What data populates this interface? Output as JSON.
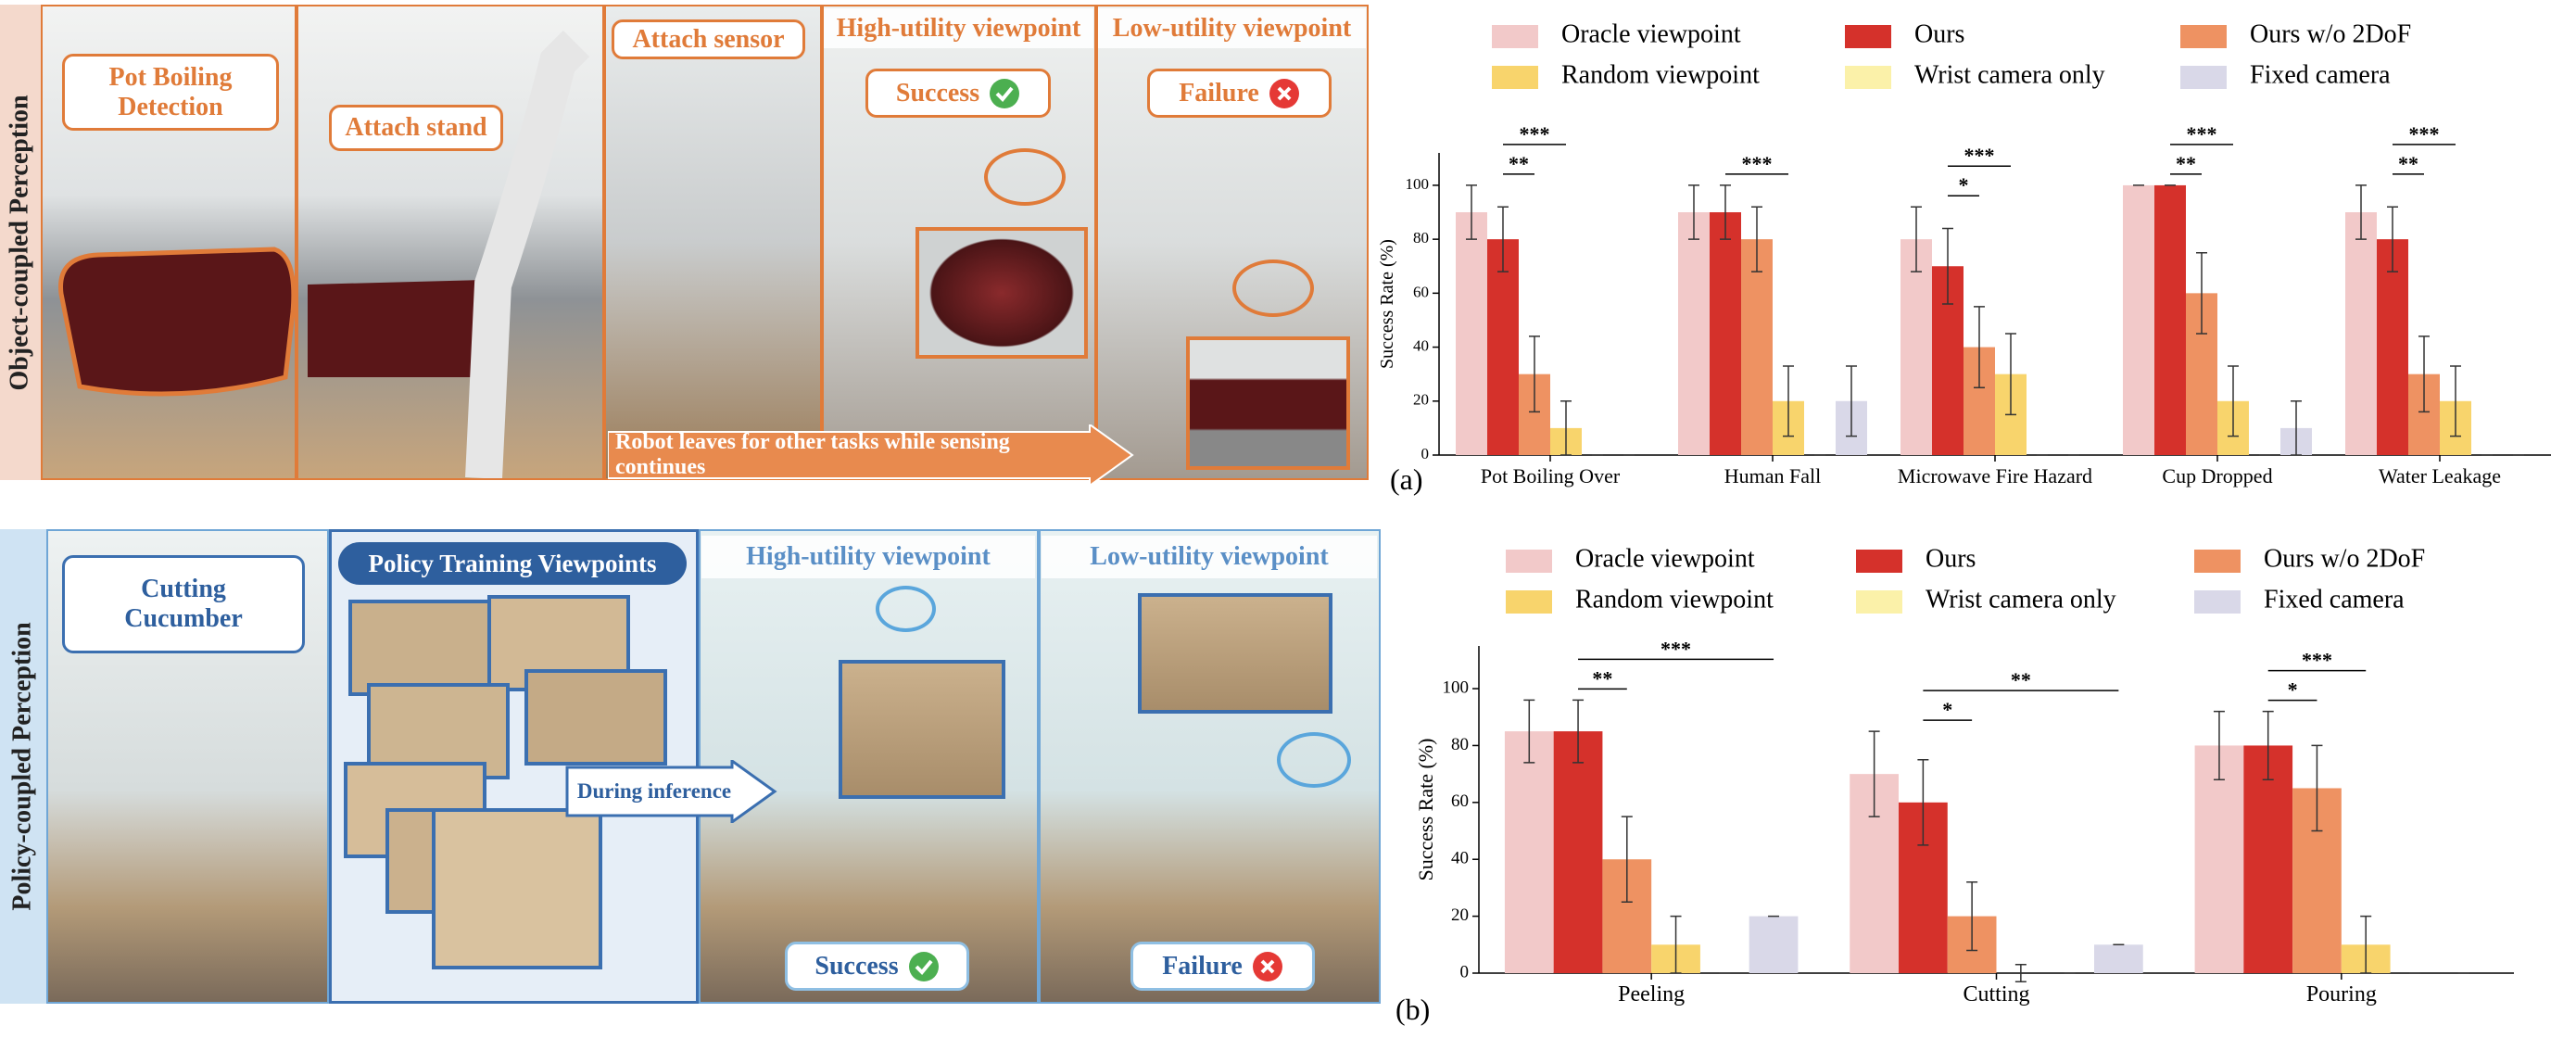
{
  "figure": {
    "top": {
      "side_label": "Object-coupled Perception",
      "task": "Pot Boiling Detection",
      "step1": "Attach stand",
      "step2": "Attach sensor",
      "high": "High-utility viewpoint",
      "low": "Low-utility viewpoint",
      "success": "Success",
      "failure": "Failure",
      "banner": "Robot leaves for other tasks while sensing continues",
      "caption": "(a)"
    },
    "bottom": {
      "side_label": "Policy-coupled Perception",
      "task": "Cutting Cucumber",
      "training": "Policy Training Viewpoints",
      "inference": "During inference",
      "high": "High-utility viewpoint",
      "low": "Low-utility viewpoint",
      "success": "Success",
      "failure": "Failure",
      "caption": "(b)"
    }
  },
  "chart_data": [
    {
      "type": "bar",
      "y_label": "Success Rate (%)",
      "categories": [
        "Pot Boiling Over",
        "Human Fall",
        "Microwave Fire Hazard",
        "Cup Dropped",
        "Water Leakage"
      ],
      "series": [
        {
          "name": "Oracle viewpoint",
          "color": "#f2c9c9",
          "values": [
            90,
            90,
            80,
            100,
            90
          ],
          "errors": [
            10,
            10,
            12,
            0,
            10
          ]
        },
        {
          "name": "Ours",
          "color": "#d5312b",
          "values": [
            80,
            90,
            70,
            100,
            80
          ],
          "errors": [
            12,
            10,
            14,
            0,
            12
          ]
        },
        {
          "name": "Ours w/o 2DoF",
          "color": "#ee9262",
          "values": [
            30,
            80,
            40,
            60,
            30
          ],
          "errors": [
            14,
            12,
            15,
            15,
            14
          ]
        },
        {
          "name": "Random viewpoint",
          "color": "#f8d46c",
          "values": [
            10,
            20,
            30,
            20,
            20
          ],
          "errors": [
            10,
            13,
            15,
            13,
            13
          ]
        },
        {
          "name": "Wrist camera only",
          "color": "#fbf1a9",
          "values": [
            0,
            0,
            0,
            0,
            0
          ],
          "errors": [
            0,
            0,
            0,
            0,
            0
          ]
        },
        {
          "name": "Fixed camera",
          "color": "#d9d8e8",
          "values": [
            0,
            20,
            0,
            10,
            0
          ],
          "errors": [
            0,
            13,
            0,
            10,
            0
          ]
        }
      ],
      "significance": [
        "**",
        "***",
        "***",
        "*",
        "***",
        "**",
        "***",
        "**",
        "***"
      ],
      "ylim": [
        0,
        112
      ],
      "yticks": [
        0,
        20,
        40,
        60,
        80,
        100
      ]
    },
    {
      "type": "bar",
      "y_label": "Success Rate (%)",
      "categories": [
        "Peeling",
        "Cutting",
        "Pouring"
      ],
      "series": [
        {
          "name": "Oracle viewpoint",
          "color": "#f2c9c9",
          "values": [
            85,
            70,
            80
          ],
          "errors": [
            11,
            15,
            12
          ]
        },
        {
          "name": "Ours",
          "color": "#d5312b",
          "values": [
            85,
            60,
            80
          ],
          "errors": [
            11,
            15,
            12
          ]
        },
        {
          "name": "Ours w/o 2DoF",
          "color": "#ee9262",
          "values": [
            40,
            20,
            65
          ],
          "errors": [
            15,
            12,
            15
          ]
        },
        {
          "name": "Random viewpoint",
          "color": "#f8d46c",
          "values": [
            10,
            0,
            10
          ],
          "errors": [
            10,
            3,
            10
          ]
        },
        {
          "name": "Wrist camera only",
          "color": "#fbf1a9",
          "values": [
            0,
            0,
            0
          ],
          "errors": [
            0,
            0,
            0
          ]
        },
        {
          "name": "Fixed camera",
          "color": "#d9d8e8",
          "values": [
            20,
            10,
            0
          ],
          "errors": [
            0,
            0,
            0
          ]
        }
      ],
      "significance": [
        "**",
        "***",
        "*",
        "**",
        "*",
        "***"
      ],
      "ylim": [
        0,
        115
      ],
      "yticks": [
        0,
        20,
        40,
        60,
        80,
        100
      ]
    }
  ]
}
